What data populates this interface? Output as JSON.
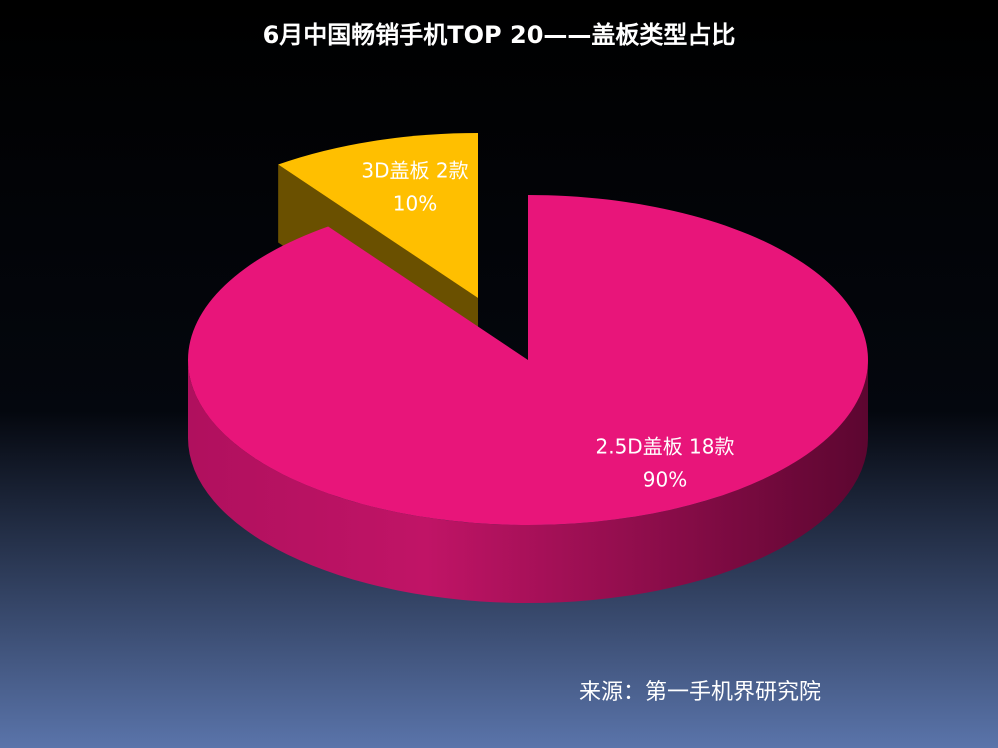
{
  "chart_data": {
    "type": "pie3d",
    "title": "6月中国畅销手机TOP 20——盖板类型占比",
    "categories": [
      "3D盖板 2款",
      "2.5D盖板 18款"
    ],
    "values": [
      10,
      90
    ],
    "value_labels": [
      "10%",
      "90%"
    ],
    "colors": [
      "#ffbf00",
      "#e8157a"
    ],
    "source": "来源：第一手机界研究院"
  }
}
